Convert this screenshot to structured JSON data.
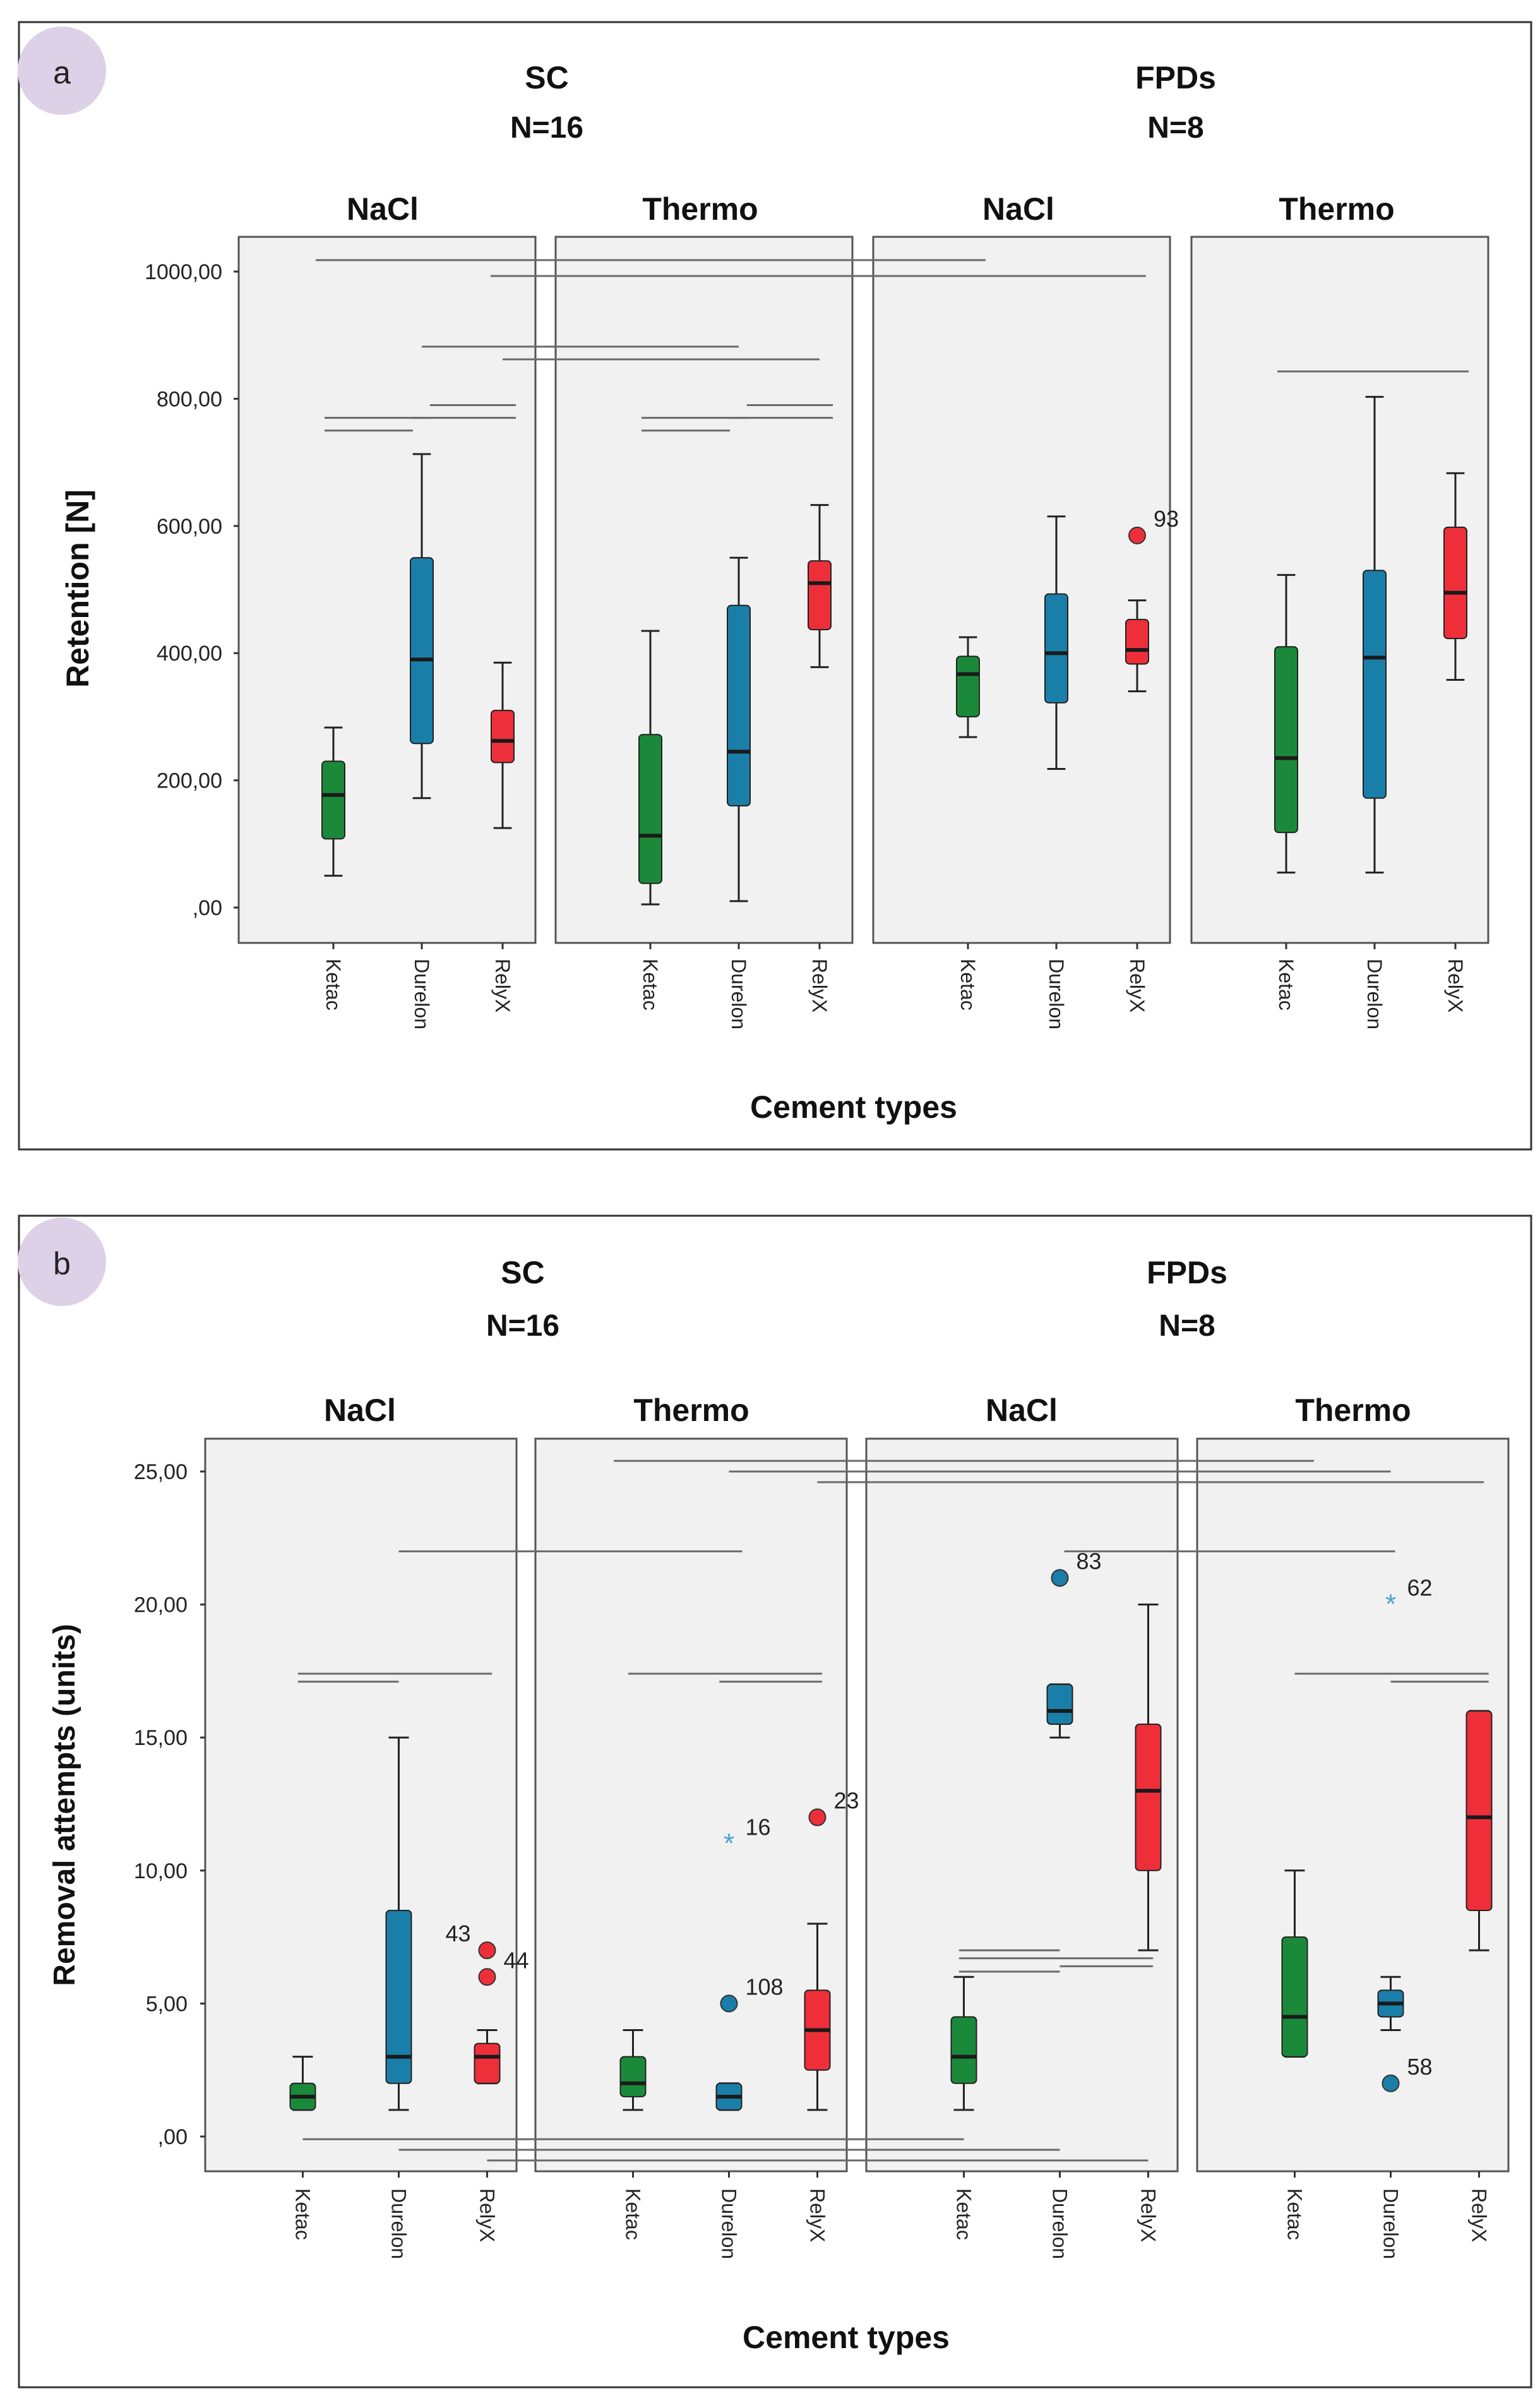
{
  "figure": {
    "group_labels": [
      "SC",
      "FPDs"
    ],
    "group_n": [
      "N=16",
      "N=8"
    ]
  },
  "colors": {
    "Ketac": "#1a8a3a",
    "Durelon": "#1a7fa8",
    "RelyX": "#ee2f3a",
    "outlier_star": "#4aa5d0",
    "panel_label_bg": "#dcd1e6"
  },
  "chart_data": [
    {
      "type": "box",
      "panel_label": "a",
      "ylabel": "Retention [N]",
      "xlabel": "Cement types",
      "ylim": [
        -40,
        1060
      ],
      "yticks": [
        0,
        200,
        400,
        600,
        800,
        1000
      ],
      "ytick_labels": [
        ",00",
        "200,00",
        "400,00",
        "600,00",
        "800,00",
        "1000,00"
      ],
      "categories": [
        "Ketac",
        "Durelon",
        "RelyX"
      ],
      "facets": [
        {
          "group": "SC",
          "name": "NaCl",
          "boxes": [
            {
              "category": "Ketac",
              "min": 50,
              "q1": 108,
              "median": 177,
              "q3": 230,
              "max": 283,
              "outliers": []
            },
            {
              "category": "Durelon",
              "min": 172,
              "q1": 258,
              "median": 390,
              "q3": 550,
              "max": 713,
              "outliers": []
            },
            {
              "category": "RelyX",
              "min": 125,
              "q1": 228,
              "median": 262,
              "q3": 310,
              "max": 385,
              "outliers": []
            }
          ]
        },
        {
          "group": "SC",
          "name": "Thermo",
          "boxes": [
            {
              "category": "Ketac",
              "min": 5,
              "q1": 38,
              "median": 113,
              "q3": 272,
              "max": 435,
              "outliers": []
            },
            {
              "category": "Durelon",
              "min": 10,
              "q1": 160,
              "median": 245,
              "q3": 475,
              "max": 550,
              "outliers": []
            },
            {
              "category": "RelyX",
              "min": 378,
              "q1": 437,
              "median": 510,
              "q3": 545,
              "max": 633,
              "outliers": []
            }
          ]
        },
        {
          "group": "FPDs",
          "name": "NaCl",
          "boxes": [
            {
              "category": "Ketac",
              "min": 268,
              "q1": 300,
              "median": 367,
              "q3": 395,
              "max": 425,
              "outliers": []
            },
            {
              "category": "Durelon",
              "min": 218,
              "q1": 322,
              "median": 400,
              "q3": 493,
              "max": 615,
              "outliers": []
            },
            {
              "category": "RelyX",
              "min": 340,
              "q1": 383,
              "median": 405,
              "q3": 453,
              "max": 483,
              "outliers": [
                {
                  "value": 585,
                  "label": "93",
                  "shape": "circle"
                }
              ]
            }
          ]
        },
        {
          "group": "FPDs",
          "name": "Thermo",
          "boxes": [
            {
              "category": "Ketac",
              "min": 55,
              "q1": 118,
              "median": 235,
              "q3": 410,
              "max": 523,
              "outliers": []
            },
            {
              "category": "Durelon",
              "min": 55,
              "q1": 172,
              "median": 393,
              "q3": 530,
              "max": 803,
              "outliers": []
            },
            {
              "category": "RelyX",
              "min": 358,
              "q1": 423,
              "median": 495,
              "q3": 598,
              "max": 683,
              "outliers": []
            }
          ]
        }
      ],
      "significance_lines": [
        {
          "facet_from": 0,
          "pos_from": -0.2,
          "facet_to": 2,
          "pos_to": 0.2,
          "y": 1018
        },
        {
          "facet_from": 0,
          "pos_from": 1.85,
          "facet_to": 2,
          "pos_to": 2.1,
          "y": 993
        },
        {
          "facet_from": 0,
          "pos_from": 1.0,
          "facet_to": 1,
          "pos_to": 1.0,
          "y": 882
        },
        {
          "facet_from": 0,
          "pos_from": 2.0,
          "facet_to": 1,
          "pos_to": 2.0,
          "y": 862
        },
        {
          "facet_from": 0,
          "pos_from": -0.1,
          "facet_to": 0,
          "pos_to": 1.1,
          "y": 770
        },
        {
          "facet_from": 0,
          "pos_from": -0.1,
          "facet_to": 0,
          "pos_to": 0.9,
          "y": 750
        },
        {
          "facet_from": 0,
          "pos_from": 1.1,
          "facet_to": 0,
          "pos_to": 2.15,
          "y": 790
        },
        {
          "facet_from": 0,
          "pos_from": 0.9,
          "facet_to": 0,
          "pos_to": 2.15,
          "y": 770
        },
        {
          "facet_from": 1,
          "pos_from": -0.1,
          "facet_to": 1,
          "pos_to": 1.1,
          "y": 770
        },
        {
          "facet_from": 1,
          "pos_from": -0.1,
          "facet_to": 1,
          "pos_to": 0.9,
          "y": 750
        },
        {
          "facet_from": 1,
          "pos_from": 1.1,
          "facet_to": 1,
          "pos_to": 2.15,
          "y": 790
        },
        {
          "facet_from": 1,
          "pos_from": 0.9,
          "facet_to": 1,
          "pos_to": 2.15,
          "y": 770
        },
        {
          "facet_from": 3,
          "pos_from": -0.1,
          "facet_to": 3,
          "pos_to": 2.15,
          "y": 843
        }
      ]
    },
    {
      "type": "box",
      "panel_label": "b",
      "ylabel": "Removal attempts (units)",
      "xlabel": "Cement types",
      "ylim": [
        -1.3,
        26.3
      ],
      "yticks": [
        0,
        5,
        10,
        15,
        20,
        25
      ],
      "ytick_labels": [
        ",00",
        "5,00",
        "10,00",
        "15,00",
        "20,00",
        "25,00"
      ],
      "categories": [
        "Ketac",
        "Durelon",
        "RelyX"
      ],
      "facets": [
        {
          "group": "SC",
          "name": "NaCl",
          "boxes": [
            {
              "category": "Ketac",
              "min": 1,
              "q1": 1,
              "median": 1.5,
              "q3": 2,
              "max": 3,
              "outliers": []
            },
            {
              "category": "Durelon",
              "min": 1,
              "q1": 2,
              "median": 3,
              "q3": 8.5,
              "max": 15,
              "outliers": []
            },
            {
              "category": "RelyX",
              "min": 2,
              "q1": 2,
              "median": 3,
              "q3": 3.5,
              "max": 4,
              "outliers": [
                {
                  "value": 7,
                  "label": "43",
                  "shape": "circle",
                  "label_side": "left"
                },
                {
                  "value": 6,
                  "label": "44",
                  "shape": "circle",
                  "label_side": "right"
                }
              ]
            }
          ]
        },
        {
          "group": "SC",
          "name": "Thermo",
          "boxes": [
            {
              "category": "Ketac",
              "min": 1,
              "q1": 1.5,
              "median": 2,
              "q3": 3,
              "max": 4,
              "outliers": []
            },
            {
              "category": "Durelon",
              "min": 1,
              "q1": 1,
              "median": 1.5,
              "q3": 2,
              "max": 2,
              "outliers": [
                {
                  "value": 5,
                  "label": "108",
                  "shape": "circle"
                },
                {
                  "value": 11,
                  "label": "16",
                  "shape": "star"
                }
              ]
            },
            {
              "category": "RelyX",
              "min": 1,
              "q1": 2.5,
              "median": 4,
              "q3": 5.5,
              "max": 8,
              "outliers": [
                {
                  "value": 12,
                  "label": "23",
                  "shape": "circle"
                }
              ]
            }
          ]
        },
        {
          "group": "FPDs",
          "name": "NaCl",
          "boxes": [
            {
              "category": "Ketac",
              "min": 1,
              "q1": 2,
              "median": 3,
              "q3": 4.5,
              "max": 6,
              "outliers": []
            },
            {
              "category": "Durelon",
              "min": 15,
              "q1": 15.5,
              "median": 16,
              "q3": 17,
              "max": 17,
              "outliers": [
                {
                  "value": 21,
                  "label": "83",
                  "shape": "circle"
                }
              ]
            },
            {
              "category": "RelyX",
              "min": 7,
              "q1": 10,
              "median": 13,
              "q3": 15.5,
              "max": 20,
              "outliers": []
            }
          ]
        },
        {
          "group": "FPDs",
          "name": "Thermo",
          "boxes": [
            {
              "category": "Ketac",
              "min": 3,
              "q1": 3,
              "median": 4.5,
              "q3": 7.5,
              "max": 10,
              "outliers": []
            },
            {
              "category": "Durelon",
              "min": 4,
              "q1": 4.5,
              "median": 5,
              "q3": 5.5,
              "max": 6,
              "outliers": [
                {
                  "value": 2,
                  "label": "58",
                  "shape": "circle"
                },
                {
                  "value": 20,
                  "label": "62",
                  "shape": "star"
                }
              ]
            },
            {
              "category": "RelyX",
              "min": 7,
              "q1": 8.5,
              "median": 12,
              "q3": 16,
              "max": 16,
              "outliers": []
            }
          ]
        }
      ],
      "significance_lines": [
        {
          "facet_from": 1,
          "pos_from": -0.2,
          "facet_to": 3,
          "pos_to": 0.2,
          "y": 25.4
        },
        {
          "facet_from": 1,
          "pos_from": 1.0,
          "facet_to": 3,
          "pos_to": 1.0,
          "y": 25.0
        },
        {
          "facet_from": 1,
          "pos_from": 2.0,
          "facet_to": 3,
          "pos_to": 2.05,
          "y": 24.6
        },
        {
          "facet_from": 0,
          "pos_from": 1.0,
          "facet_to": 1,
          "pos_to": 1.15,
          "y": 22
        },
        {
          "facet_from": 2,
          "pos_from": 1.05,
          "facet_to": 3,
          "pos_to": 1.05,
          "y": 22
        },
        {
          "facet_from": 0,
          "pos_from": -0.05,
          "facet_to": 0,
          "pos_to": 1.0,
          "y": 17.1
        },
        {
          "facet_from": 0,
          "pos_from": -0.05,
          "facet_to": 0,
          "pos_to": 2.05,
          "y": 17.4
        },
        {
          "facet_from": 1,
          "pos_from": -0.05,
          "facet_to": 1,
          "pos_to": 2.05,
          "y": 17.4
        },
        {
          "facet_from": 1,
          "pos_from": 0.9,
          "facet_to": 1,
          "pos_to": 2.05,
          "y": 17.1
        },
        {
          "facet_from": 3,
          "pos_from": 0.0,
          "facet_to": 3,
          "pos_to": 2.1,
          "y": 17.4
        },
        {
          "facet_from": 3,
          "pos_from": 1.0,
          "facet_to": 3,
          "pos_to": 2.1,
          "y": 17.1
        },
        {
          "facet_from": 2,
          "pos_from": -0.05,
          "facet_to": 2,
          "pos_to": 1.0,
          "y": 7.0
        },
        {
          "facet_from": 2,
          "pos_from": -0.05,
          "facet_to": 2,
          "pos_to": 2.05,
          "y": 6.7
        },
        {
          "facet_from": 2,
          "pos_from": 1.0,
          "facet_to": 2,
          "pos_to": 2.05,
          "y": 6.4
        },
        {
          "facet_from": 2,
          "pos_from": -0.05,
          "facet_to": 2,
          "pos_to": 1.0,
          "y": 6.2
        },
        {
          "facet_from": 0,
          "pos_from": 0.0,
          "facet_to": 2,
          "pos_to": 0.0,
          "y": -0.1
        },
        {
          "facet_from": 0,
          "pos_from": 1.0,
          "facet_to": 2,
          "pos_to": 1.0,
          "y": -0.5
        },
        {
          "facet_from": 0,
          "pos_from": 2.0,
          "facet_to": 2,
          "pos_to": 2.0,
          "y": -0.9
        }
      ]
    }
  ]
}
